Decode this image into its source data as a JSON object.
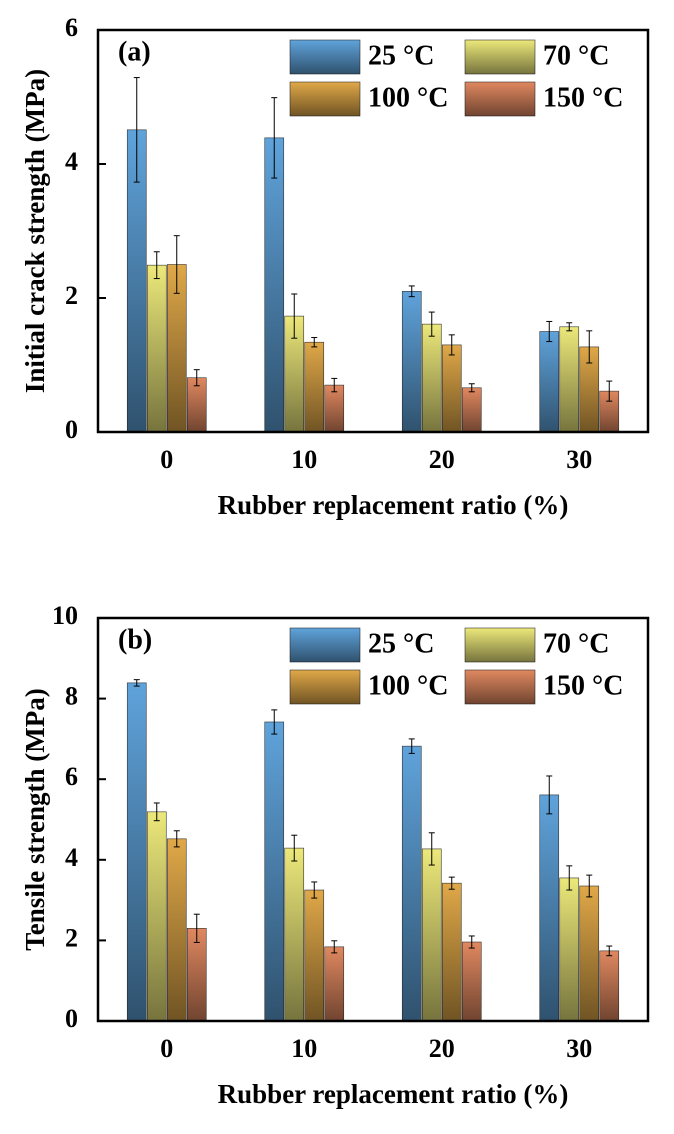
{
  "chart_data": [
    {
      "type": "bar",
      "panel": "(a)",
      "xlabel": "Rubber replacement ratio (%)",
      "ylabel": "Initial crack strength (MPa)",
      "categories": [
        "0",
        "10",
        "20",
        "30"
      ],
      "ylim": [
        0,
        6
      ],
      "yticks": [
        0,
        2,
        4,
        6
      ],
      "series": [
        {
          "name": "25 °C",
          "color": "#5fa3db",
          "values": [
            4.51,
            4.39,
            2.1,
            1.5
          ],
          "errors": [
            0.78,
            0.6,
            0.08,
            0.15
          ]
        },
        {
          "name": "70 °C",
          "color": "#ece87a",
          "values": [
            2.49,
            1.73,
            1.61,
            1.57
          ],
          "errors": [
            0.2,
            0.33,
            0.18,
            0.06
          ]
        },
        {
          "name": "100 °C",
          "color": "#e0a848",
          "values": [
            2.5,
            1.34,
            1.3,
            1.27
          ],
          "errors": [
            0.43,
            0.07,
            0.15,
            0.24
          ]
        },
        {
          "name": "150 °C",
          "color": "#e08860",
          "values": [
            0.81,
            0.7,
            0.66,
            0.61
          ],
          "errors": [
            0.12,
            0.1,
            0.06,
            0.15
          ]
        }
      ]
    },
    {
      "type": "bar",
      "panel": "(b)",
      "xlabel": "Rubber replacement ratio (%)",
      "ylabel": "Tensile strength (MPa)",
      "categories": [
        "0",
        "10",
        "20",
        "30"
      ],
      "ylim": [
        0,
        10
      ],
      "yticks": [
        0,
        2,
        4,
        6,
        8,
        10
      ],
      "series": [
        {
          "name": "25 °C",
          "color": "#5fa3db",
          "values": [
            8.39,
            7.42,
            6.82,
            5.61
          ],
          "errors": [
            0.08,
            0.3,
            0.18,
            0.47
          ]
        },
        {
          "name": "70 °C",
          "color": "#ece87a",
          "values": [
            5.19,
            4.29,
            4.27,
            3.55
          ],
          "errors": [
            0.22,
            0.32,
            0.4,
            0.3
          ]
        },
        {
          "name": "100 °C",
          "color": "#e0a848",
          "values": [
            4.52,
            3.25,
            3.42,
            3.35
          ],
          "errors": [
            0.2,
            0.2,
            0.15,
            0.27
          ]
        },
        {
          "name": "150 °C",
          "color": "#e08860",
          "values": [
            2.3,
            1.84,
            1.96,
            1.74
          ],
          "errors": [
            0.35,
            0.15,
            0.15,
            0.12
          ]
        }
      ]
    }
  ]
}
